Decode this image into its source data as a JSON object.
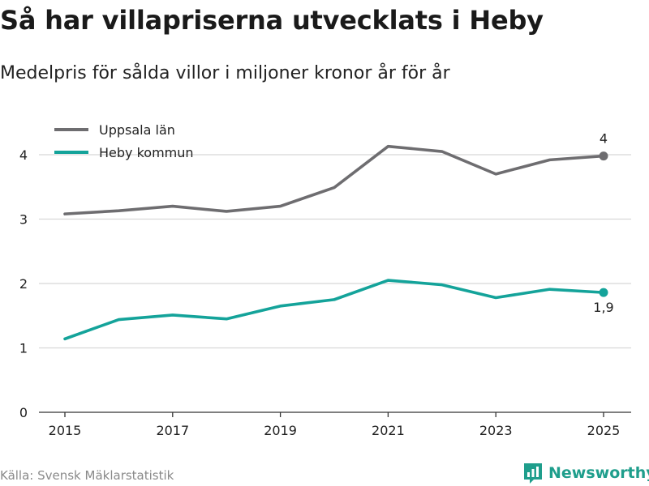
{
  "header": {
    "title": "Så har villapriserna utvecklats i Heby",
    "subtitle": "Medelpris för sålda villor i miljoner kronor år för år"
  },
  "footer": {
    "source": "Källa: Svensk Mäklarstatistik",
    "brand": "Newsworthy"
  },
  "colors": {
    "series_gray": "#6e6d70",
    "series_teal": "#14a39a",
    "grid": "#d8d8d8",
    "brand": "#1f9e8c"
  },
  "chart_data": {
    "type": "line",
    "title": "Så har villapriserna utvecklats i Heby",
    "subtitle": "Medelpris för sålda villor i miljoner kronor år för år",
    "xlabel": "",
    "ylabel": "",
    "x": [
      2015,
      2016,
      2017,
      2018,
      2019,
      2020,
      2021,
      2022,
      2023,
      2024,
      2025
    ],
    "xticks": [
      "2015",
      "2017",
      "2019",
      "2021",
      "2023",
      "2025"
    ],
    "yticks": [
      "0",
      "1",
      "2",
      "3",
      "4"
    ],
    "xlim": [
      2015,
      2025
    ],
    "ylim": [
      0,
      4
    ],
    "grid": true,
    "legend_position": "top-left",
    "series": [
      {
        "name": "Uppsala län",
        "color": "#6e6d70",
        "values": [
          3.08,
          3.13,
          3.2,
          3.12,
          3.2,
          3.49,
          4.13,
          4.05,
          3.7,
          3.92,
          3.98
        ],
        "end_label": "4"
      },
      {
        "name": "Heby kommun",
        "color": "#14a39a",
        "values": [
          1.14,
          1.44,
          1.51,
          1.45,
          1.65,
          1.75,
          2.05,
          1.98,
          1.78,
          1.91,
          1.86
        ],
        "end_label": "1,9"
      }
    ]
  }
}
